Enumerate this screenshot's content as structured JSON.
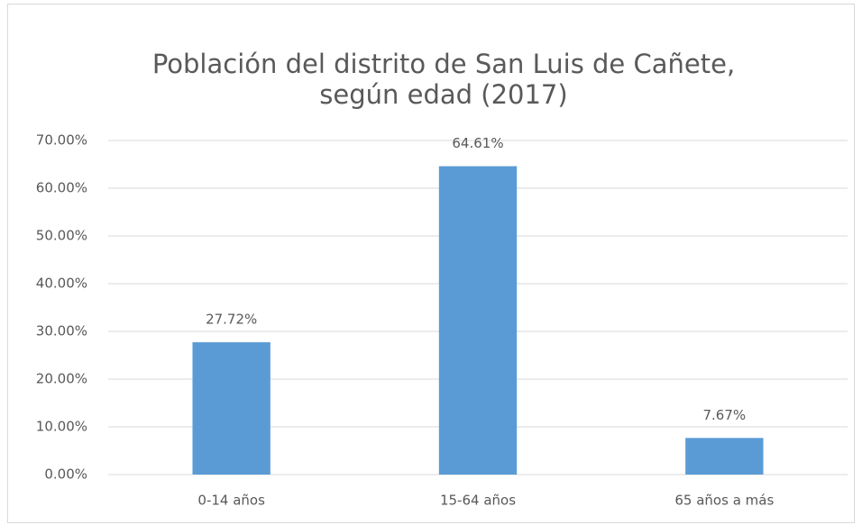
{
  "chart_data": {
    "type": "bar",
    "title": [
      "Población del distrito de San Luis de Cañete,",
      "según edad (2017)"
    ],
    "categories": [
      "0-14 años",
      "15-64 años",
      "65 años a más"
    ],
    "values": [
      27.72,
      64.61,
      7.67
    ],
    "value_labels": [
      "27.72%",
      "64.61%",
      "7.67%"
    ],
    "color": "#5b9bd5",
    "ylim": [
      0,
      70
    ],
    "yticks": [
      {
        "value": 0,
        "label": "0.00%"
      },
      {
        "value": 10,
        "label": "10.00%"
      },
      {
        "value": 20,
        "label": "20.00%"
      },
      {
        "value": 30,
        "label": "30.00%"
      },
      {
        "value": 40,
        "label": "40.00%"
      },
      {
        "value": 50,
        "label": "50.00%"
      },
      {
        "value": 60,
        "label": "60.00%"
      },
      {
        "value": 70,
        "label": "70.00%"
      }
    ],
    "grid": true
  }
}
